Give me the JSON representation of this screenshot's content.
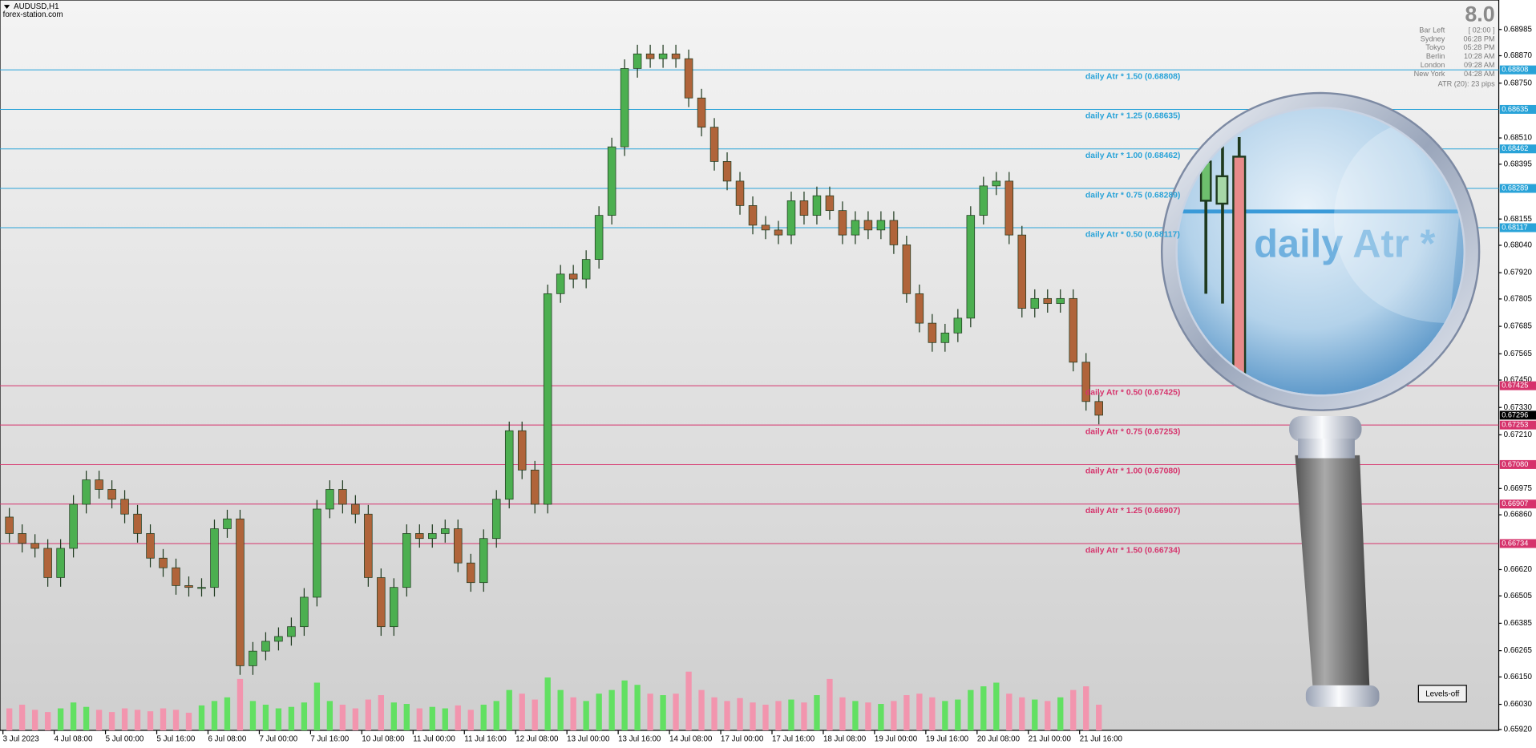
{
  "header": {
    "symbol": "AUDUSD,H1",
    "site": "forex-station.com"
  },
  "info": {
    "spread": "8.0",
    "rows": [
      {
        "label": "Bar Left",
        "value": "[ 02:00 ]"
      },
      {
        "label": "Sydney",
        "value": "06:28 PM"
      },
      {
        "label": "Tokyo",
        "value": "05:28 PM"
      },
      {
        "label": "Berlin",
        "value": "10:28 AM"
      },
      {
        "label": "London",
        "value": "09:28 AM"
      },
      {
        "label": "New York",
        "value": "04:28 AM"
      }
    ],
    "atr": "ATR (20): 23 pips"
  },
  "button": "Levels-off",
  "magnifier_text": "daily Atr *",
  "chart_data": {
    "type": "candlestick",
    "up_color": "#4caf50",
    "down_color": "#b0643a",
    "volume_up_color": "#62e062",
    "volume_down_color": "#f295ae",
    "open": [
      0.6685,
      0.66778,
      0.66735,
      0.66713,
      0.66585,
      0.66713,
      0.66906,
      0.67013,
      0.66971,
      0.66928,
      0.66863,
      0.66778,
      0.6667,
      0.66628,
      0.6655,
      0.66542,
      0.66542,
      0.66799,
      0.66842,
      0.66199,
      0.66263,
      0.66306,
      0.66327,
      0.6637,
      0.66499,
      0.66885,
      0.66971,
      0.66906,
      0.66863,
      0.66585,
      0.6637,
      0.66542,
      0.66778,
      0.66756,
      0.66778,
      0.66799,
      0.66649,
      0.66563,
      0.66756,
      0.66928,
      0.67228,
      0.67056,
      0.66906,
      0.67828,
      0.67914,
      0.67892,
      0.67978,
      0.68171,
      0.68471,
      0.68814,
      0.68878,
      0.68857,
      0.68878,
      0.68857,
      0.68685,
      0.68557,
      0.68407,
      0.68321,
      0.68214,
      0.68128,
      0.68107,
      0.68085,
      0.68235,
      0.68171,
      0.68257,
      0.68192,
      0.68085,
      0.68149,
      0.68107,
      0.68149,
      0.68042,
      0.67828,
      0.67699,
      0.67614,
      0.67656,
      0.67721,
      0.68171,
      0.683,
      0.68321,
      0.68085,
      0.67764,
      0.67807,
      0.67785,
      0.67807,
      0.67528,
      0.67356
    ],
    "high": [
      0.6689,
      0.66818,
      0.66775,
      0.66753,
      0.66753,
      0.66946,
      0.67053,
      0.67053,
      0.67011,
      0.66968,
      0.66903,
      0.66818,
      0.6671,
      0.66668,
      0.6659,
      0.66582,
      0.66839,
      0.66882,
      0.66882,
      0.66303,
      0.66346,
      0.66367,
      0.6641,
      0.66539,
      0.66925,
      0.67011,
      0.67011,
      0.66946,
      0.66903,
      0.66625,
      0.66582,
      0.66818,
      0.66818,
      0.66818,
      0.66839,
      0.66839,
      0.66689,
      0.66796,
      0.66968,
      0.67268,
      0.67268,
      0.67096,
      0.67868,
      0.67954,
      0.67954,
      0.68018,
      0.68211,
      0.68511,
      0.68854,
      0.68918,
      0.68918,
      0.68918,
      0.68918,
      0.68897,
      0.68725,
      0.68597,
      0.68447,
      0.68361,
      0.68254,
      0.68168,
      0.68147,
      0.68275,
      0.68275,
      0.68297,
      0.68297,
      0.68232,
      0.68189,
      0.68189,
      0.68189,
      0.68189,
      0.68082,
      0.67868,
      0.67739,
      0.67696,
      0.67761,
      0.68211,
      0.6834,
      0.68361,
      0.68361,
      0.68125,
      0.67847,
      0.67847,
      0.67847,
      0.67847,
      0.67568,
      0.67396
    ],
    "low": [
      0.66738,
      0.66695,
      0.66673,
      0.66545,
      0.66545,
      0.66673,
      0.66866,
      0.66931,
      0.66888,
      0.66823,
      0.66738,
      0.6663,
      0.66588,
      0.6651,
      0.66502,
      0.66502,
      0.66502,
      0.66759,
      0.66159,
      0.66159,
      0.66223,
      0.66266,
      0.66287,
      0.6633,
      0.66459,
      0.66845,
      0.66866,
      0.66823,
      0.66545,
      0.6633,
      0.6633,
      0.66502,
      0.66716,
      0.66716,
      0.66738,
      0.66609,
      0.66523,
      0.66523,
      0.66716,
      0.66888,
      0.67016,
      0.66866,
      0.66866,
      0.67788,
      0.67852,
      0.67852,
      0.67938,
      0.68131,
      0.68431,
      0.68774,
      0.68817,
      0.68817,
      0.68817,
      0.68645,
      0.68517,
      0.68367,
      0.68281,
      0.68174,
      0.68088,
      0.68067,
      0.68045,
      0.68045,
      0.68131,
      0.68131,
      0.68152,
      0.68045,
      0.68045,
      0.68067,
      0.68067,
      0.68002,
      0.67788,
      0.67659,
      0.67574,
      0.67574,
      0.67616,
      0.67681,
      0.68131,
      0.6826,
      0.68045,
      0.67724,
      0.67724,
      0.67745,
      0.67745,
      0.67488,
      0.67316,
      0.67256
    ],
    "close": [
      0.66778,
      0.66735,
      0.66713,
      0.66585,
      0.66713,
      0.66906,
      0.67013,
      0.66971,
      0.66928,
      0.66863,
      0.66778,
      0.6667,
      0.66628,
      0.6655,
      0.66542,
      0.66542,
      0.66799,
      0.66842,
      0.66199,
      0.66263,
      0.66306,
      0.66327,
      0.6637,
      0.66499,
      0.66885,
      0.66971,
      0.66906,
      0.66863,
      0.66585,
      0.6637,
      0.66542,
      0.66778,
      0.66756,
      0.66778,
      0.66799,
      0.66649,
      0.66563,
      0.66756,
      0.66928,
      0.67228,
      0.67056,
      0.66906,
      0.67828,
      0.67914,
      0.67892,
      0.67978,
      0.68171,
      0.68471,
      0.68814,
      0.68878,
      0.68857,
      0.68878,
      0.68857,
      0.68685,
      0.68557,
      0.68407,
      0.68321,
      0.68214,
      0.68128,
      0.68107,
      0.68085,
      0.68235,
      0.68171,
      0.68257,
      0.68192,
      0.68085,
      0.68149,
      0.68107,
      0.68149,
      0.68042,
      0.67828,
      0.67699,
      0.67614,
      0.67656,
      0.67721,
      0.68171,
      0.683,
      0.68321,
      0.68085,
      0.67764,
      0.67807,
      0.67785,
      0.67807,
      0.67528,
      0.67356,
      0.67296
    ],
    "volume": [
      30,
      35,
      28,
      25,
      30,
      38,
      32,
      28,
      25,
      30,
      28,
      26,
      30,
      28,
      24,
      34,
      40,
      45,
      70,
      40,
      35,
      30,
      32,
      38,
      65,
      40,
      35,
      30,
      42,
      48,
      38,
      36,
      30,
      32,
      30,
      34,
      28,
      35,
      40,
      55,
      50,
      42,
      72,
      55,
      45,
      40,
      50,
      55,
      68,
      62,
      50,
      48,
      50,
      80,
      55,
      45,
      40,
      44,
      38,
      35,
      40,
      42,
      38,
      48,
      70,
      45,
      40,
      38,
      36,
      40,
      48,
      50,
      45,
      40,
      42,
      55,
      60,
      65,
      50,
      45,
      42,
      40,
      45,
      55,
      60,
      35
    ],
    "xlim": [
      0,
      116.7
    ],
    "xticks": [
      {
        "value": 0,
        "label": "3 Jul 2023"
      },
      {
        "value": 4,
        "label": "4 Jul 08:00"
      },
      {
        "value": 8,
        "label": "5 Jul 00:00"
      },
      {
        "value": 12,
        "label": "5 Jul 16:00"
      },
      {
        "value": 16,
        "label": "6 Jul 08:00"
      },
      {
        "value": 20,
        "label": "7 Jul 00:00"
      },
      {
        "value": 24,
        "label": "7 Jul 16:00"
      },
      {
        "value": 28,
        "label": "10 Jul 08:00"
      },
      {
        "value": 32,
        "label": "11 Jul 00:00"
      },
      {
        "value": 36,
        "label": "11 Jul 16:00"
      },
      {
        "value": 40,
        "label": "12 Jul 08:00"
      },
      {
        "value": 44,
        "label": "13 Jul 00:00"
      },
      {
        "value": 48,
        "label": "13 Jul 16:00"
      },
      {
        "value": 52,
        "label": "14 Jul 08:00"
      },
      {
        "value": 56,
        "label": "17 Jul 00:00"
      },
      {
        "value": 60,
        "label": "17 Jul 16:00"
      },
      {
        "value": 64,
        "label": "18 Jul 08:00"
      },
      {
        "value": 68,
        "label": "19 Jul 00:00"
      },
      {
        "value": 72,
        "label": "19 Jul 16:00"
      },
      {
        "value": 76,
        "label": "20 Jul 08:00"
      },
      {
        "value": 80,
        "label": "21 Jul 00:00"
      },
      {
        "value": 84,
        "label": "21 Jul 16:00"
      }
    ],
    "ylim": [
      0.65916,
      0.69114
    ],
    "yticks": [
      {
        "value": 0.68985,
        "label": "0.68985"
      },
      {
        "value": 0.6887,
        "label": "0.68870"
      },
      {
        "value": 0.6875,
        "label": "0.68750"
      },
      {
        "value": 0.6851,
        "label": "0.68510"
      },
      {
        "value": 0.68395,
        "label": "0.68395"
      },
      {
        "value": 0.68155,
        "label": "0.68155"
      },
      {
        "value": 0.6804,
        "label": "0.68040"
      },
      {
        "value": 0.6792,
        "label": "0.67920"
      },
      {
        "value": 0.67805,
        "label": "0.67805"
      },
      {
        "value": 0.67685,
        "label": "0.67685"
      },
      {
        "value": 0.67565,
        "label": "0.67565"
      },
      {
        "value": 0.6745,
        "label": "0.67450"
      },
      {
        "value": 0.6733,
        "label": "0.67330"
      },
      {
        "value": 0.6721,
        "label": "0.67210"
      },
      {
        "value": 0.66975,
        "label": "0.66975"
      },
      {
        "value": 0.6686,
        "label": "0.66860"
      },
      {
        "value": 0.6662,
        "label": "0.66620"
      },
      {
        "value": 0.66505,
        "label": "0.66505"
      },
      {
        "value": 0.66385,
        "label": "0.66385"
      },
      {
        "value": 0.66265,
        "label": "0.66265"
      },
      {
        "value": 0.6615,
        "label": "0.66150"
      },
      {
        "value": 0.6603,
        "label": "0.66030"
      },
      {
        "value": 0.6592,
        "label": "0.65920"
      }
    ],
    "levels": [
      {
        "value": 0.68808,
        "label": "daily Atr * 1.50 (0.68808)",
        "tag": "0.68808",
        "color": "#29a3d8"
      },
      {
        "value": 0.68635,
        "label": "daily Atr * 1.25 (0.68635)",
        "tag": "0.68635",
        "color": "#29a3d8"
      },
      {
        "value": 0.68462,
        "label": "daily Atr * 1.00 (0.68462)",
        "tag": "0.68462",
        "color": "#29a3d8"
      },
      {
        "value": 0.68289,
        "label": "daily Atr * 0.75 (0.68289)",
        "tag": "0.68289",
        "color": "#29a3d8"
      },
      {
        "value": 0.68117,
        "label": "daily Atr * 0.50 (0.68117)",
        "tag": "0.68117",
        "color": "#29a3d8"
      },
      {
        "value": 0.67425,
        "label": "daily Atr * 0.50 (0.67425)",
        "tag": "0.67425",
        "color": "#d6336c"
      },
      {
        "value": 0.67253,
        "label": "daily Atr * 0.75 (0.67253)",
        "tag": "0.67253",
        "color": "#d6336c"
      },
      {
        "value": 0.6708,
        "label": "daily Atr * 1.00 (0.67080)",
        "tag": "0.67080",
        "color": "#d6336c"
      },
      {
        "value": 0.66907,
        "label": "daily Atr * 1.25 (0.66907)",
        "tag": "0.66907",
        "color": "#d6336c"
      },
      {
        "value": 0.66734,
        "label": "daily Atr * 1.50 (0.66734)",
        "tag": "0.66734",
        "color": "#d6336c"
      }
    ],
    "current_price": {
      "value": 0.67296,
      "tag": "0.67296"
    }
  }
}
